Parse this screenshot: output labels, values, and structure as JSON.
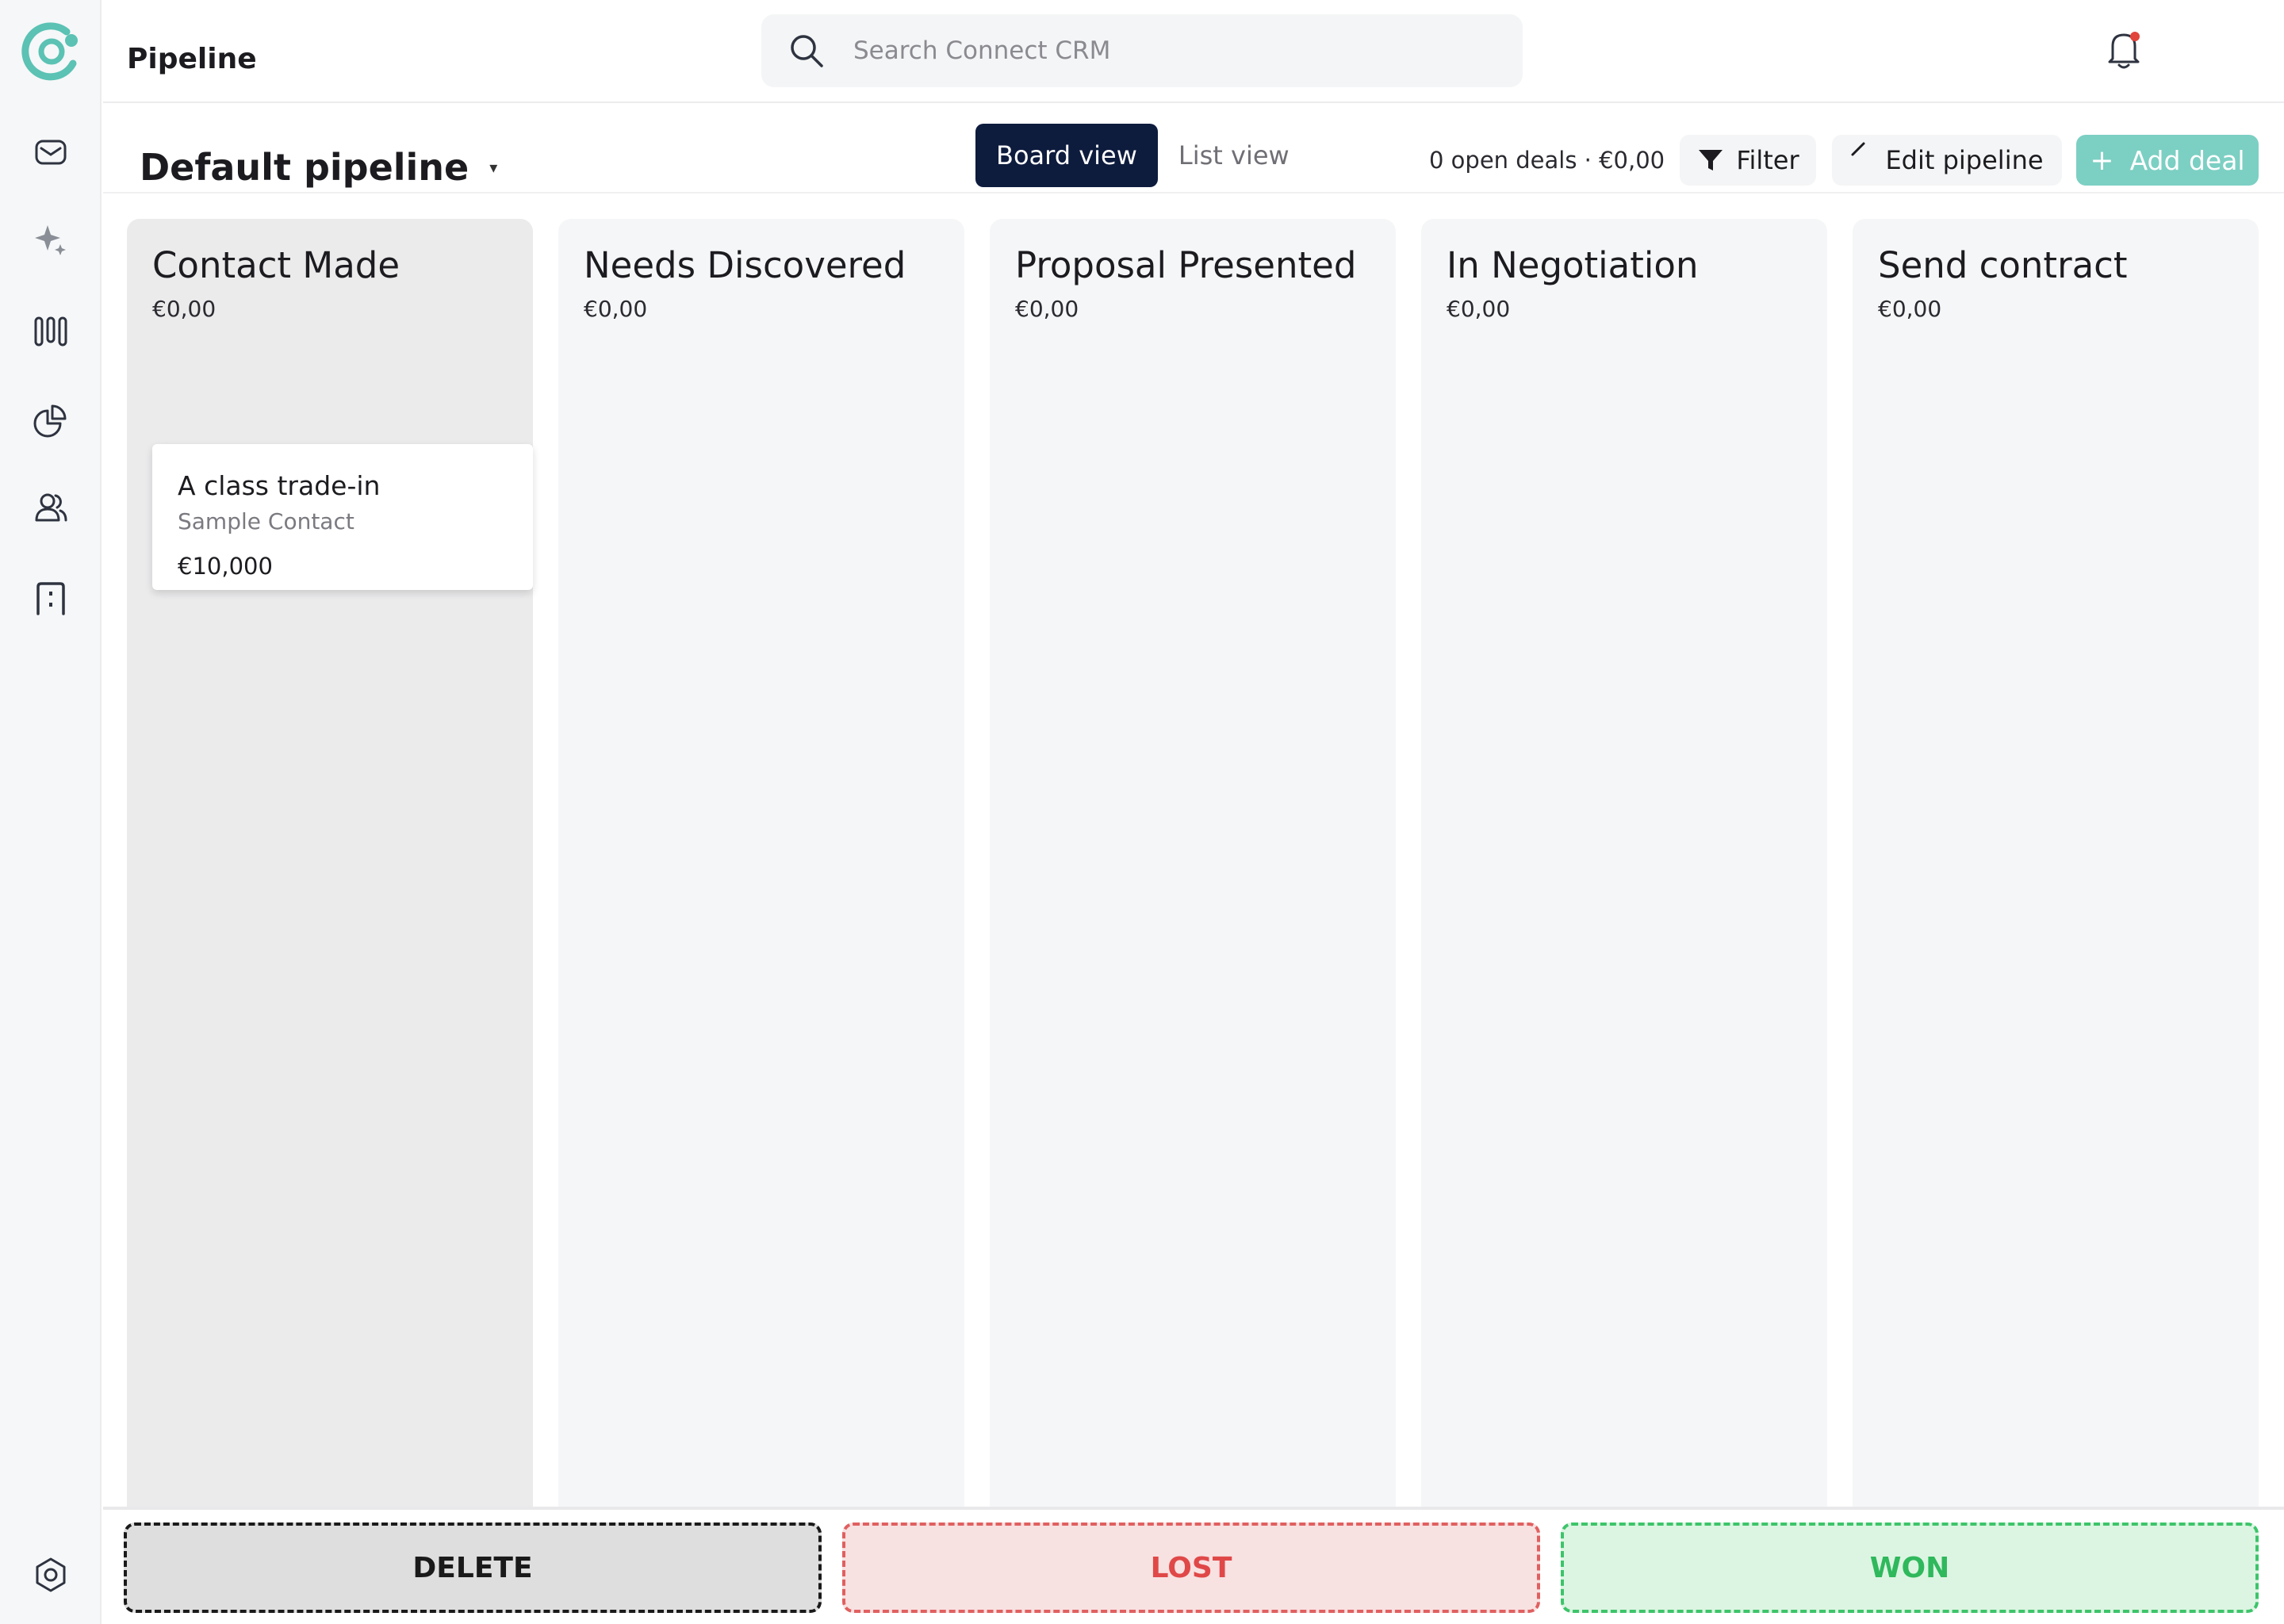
{
  "header": {
    "title": "Pipeline",
    "search_placeholder": "Search Connect CRM"
  },
  "toolbar": {
    "pipeline_name": "Default pipeline",
    "board_view": "Board view",
    "list_view": "List view",
    "summary": "0 open deals · €0,00",
    "filter": "Filter",
    "edit_pipeline": "Edit pipeline",
    "add_deal": "Add deal"
  },
  "columns": [
    {
      "title": "Contact Made",
      "amount": "€0,00"
    },
    {
      "title": "Needs Discovered",
      "amount": "€0,00"
    },
    {
      "title": "Proposal Presented",
      "amount": "€0,00"
    },
    {
      "title": "In Negotiation",
      "amount": "€0,00"
    },
    {
      "title": "Send contract",
      "amount": "€0,00"
    }
  ],
  "deal": {
    "name": "A class trade-in",
    "contact": "Sample Contact",
    "value": "€10,000"
  },
  "drop_zones": {
    "delete": "DELETE",
    "lost": "LOST",
    "won": "WON"
  },
  "colors": {
    "accent": "#5bc2b4",
    "active_view": "#0d1b3d",
    "add_button": "#7ccfc3",
    "lost": "#e04848",
    "won": "#2fb85c"
  },
  "icons": {
    "sidebar": [
      "mail-icon",
      "sparkle-icon",
      "pipeline-icon",
      "reports-icon",
      "contacts-icon",
      "company-icon",
      "settings-icon"
    ]
  }
}
